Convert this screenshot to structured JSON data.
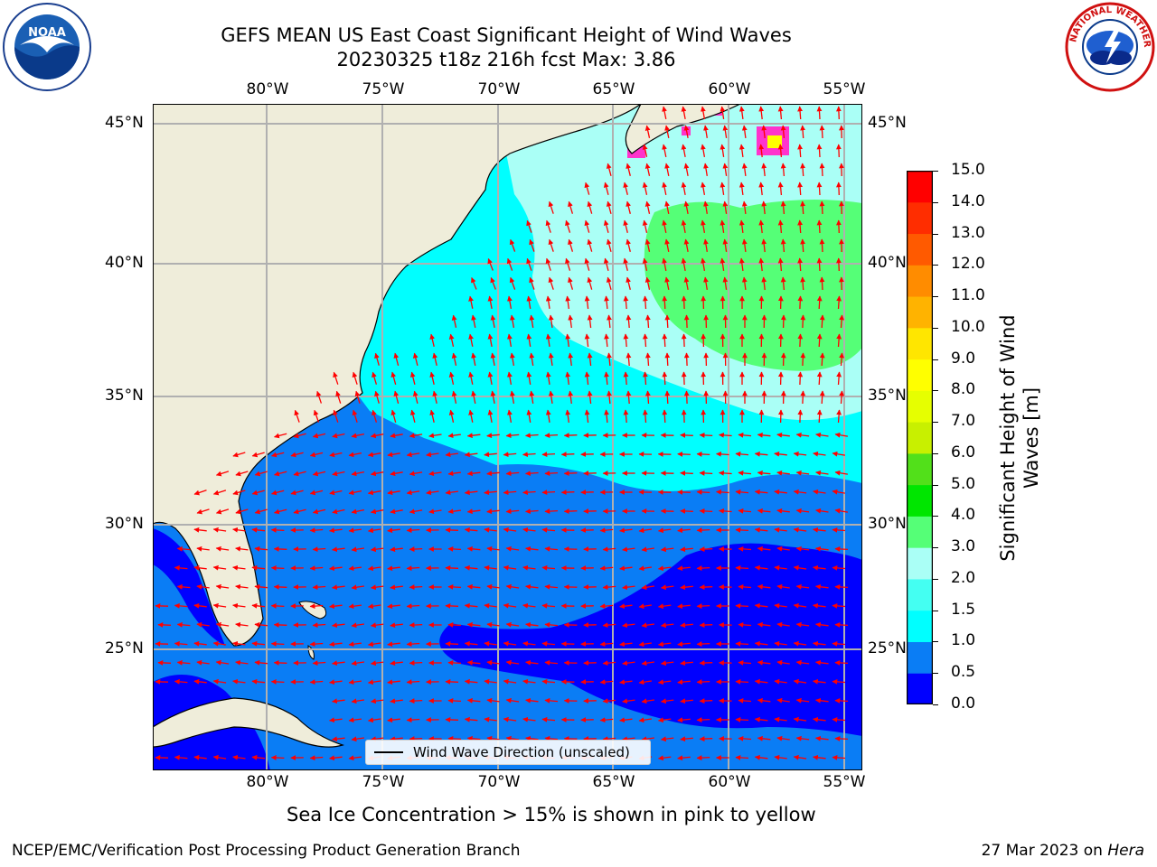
{
  "title": {
    "line1": "GEFS MEAN US East Coast Significant Height of Wind Waves",
    "line2": "20230325 t18z 216h fcst   Max: 3.86"
  },
  "logos": {
    "left": "noaa-logo",
    "right": "nws-logo"
  },
  "map": {
    "lon_labels": [
      "80°W",
      "75°W",
      "70°W",
      "65°W",
      "60°W",
      "55°W"
    ],
    "lat_labels": [
      "45°N",
      "40°N",
      "35°N",
      "30°N",
      "25°N"
    ],
    "land_color": "#efedda",
    "grid_color": "#b0b0b0",
    "arrow_color": "#ff0000",
    "legend": "Wind Wave Direction (unscaled)"
  },
  "colorbar": {
    "label_line1": "Significant Height of Wind",
    "label_line2": "Waves [m]",
    "ticks": [
      "0.0",
      "0.5",
      "1.0",
      "1.5",
      "2.0",
      "3.0",
      "4.0",
      "5.0",
      "6.0",
      "7.0",
      "8.0",
      "9.0",
      "10.0",
      "11.0",
      "12.0",
      "13.0",
      "14.0",
      "15.0"
    ],
    "colors": [
      "#0000ff",
      "#0a7df5",
      "#00ffff",
      "#44fff2",
      "#aafff6",
      "#55ff77",
      "#00e600",
      "#52e01a",
      "#c8f000",
      "#e6ff00",
      "#ffff00",
      "#ffe600",
      "#ffb300",
      "#ff8c00",
      "#ff5a00",
      "#ff2d00",
      "#ff0000"
    ]
  },
  "footnote": "Sea Ice Concentration > 15% is shown in pink to yellow",
  "credit_left": "NCEP/EMC/Verification Post Processing Product Generation Branch",
  "credit_right_date": "27 Mar 2023 on",
  "credit_right_host": "Hera"
}
